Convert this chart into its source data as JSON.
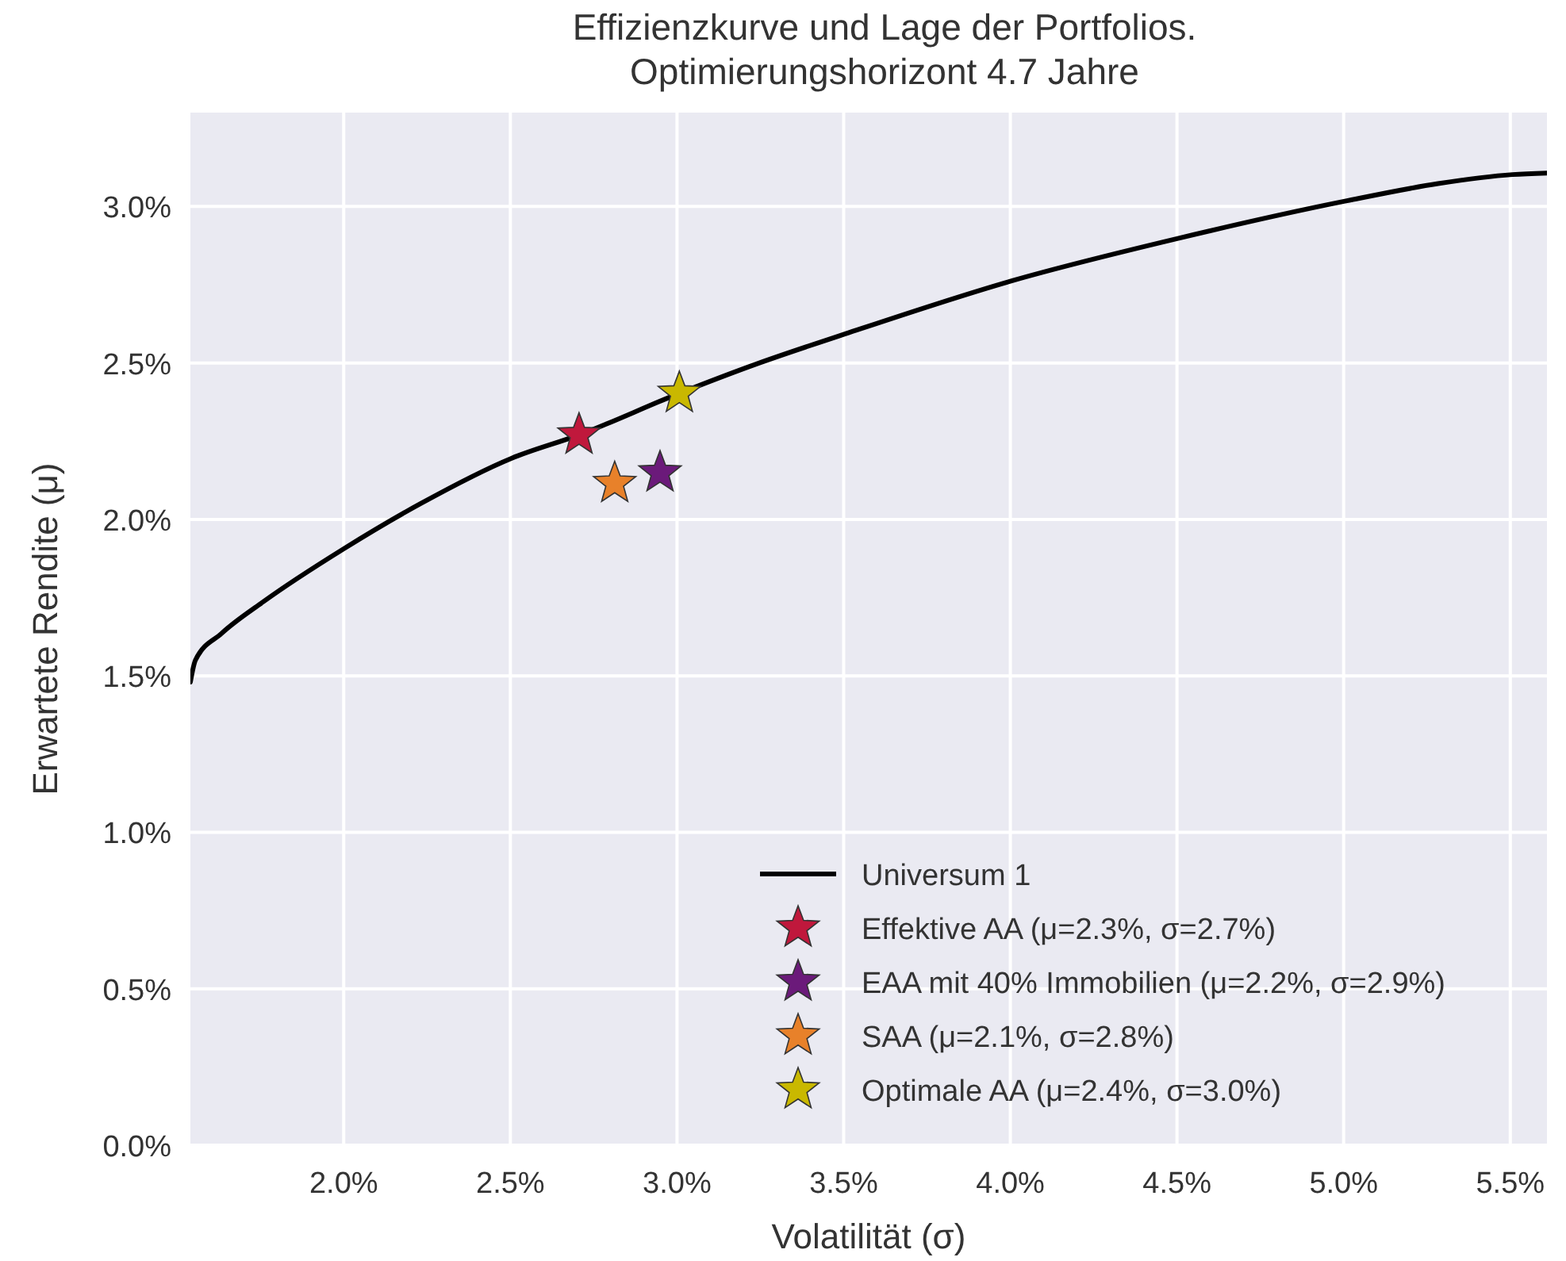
{
  "chart_data": {
    "type": "line",
    "title": "Effizienzkurve und Lage der Portfolios.\nOptimierungshorizont 4.7 Jahre",
    "xlabel": "Volatilität (σ)",
    "ylabel": "Erwartete Rendite (μ)",
    "xlim": [
      1.54,
      5.61
    ],
    "ylim": [
      0,
      3.3
    ],
    "xticks": [
      {
        "value": 2.0,
        "label": "2.0%"
      },
      {
        "value": 2.5,
        "label": "2.5%"
      },
      {
        "value": 3.0,
        "label": "3.0%"
      },
      {
        "value": 3.5,
        "label": "3.5%"
      },
      {
        "value": 4.0,
        "label": "4.0%"
      },
      {
        "value": 4.5,
        "label": "4.5%"
      },
      {
        "value": 5.0,
        "label": "5.0%"
      },
      {
        "value": 5.5,
        "label": "5.5%"
      }
    ],
    "yticks": [
      {
        "value": 0.0,
        "label": "0.0%"
      },
      {
        "value": 0.5,
        "label": "0.5%"
      },
      {
        "value": 1.0,
        "label": "1.0%"
      },
      {
        "value": 1.5,
        "label": "1.5%"
      },
      {
        "value": 2.0,
        "label": "2.0%"
      },
      {
        "value": 2.5,
        "label": "2.5%"
      },
      {
        "value": 3.0,
        "label": "3.0%"
      }
    ],
    "grid": true,
    "legend": "bottom right",
    "series": [
      {
        "name": "Universum 1",
        "color": "#000000",
        "marker": "none",
        "line_style": "solid",
        "x": [
          1.54,
          1.555,
          1.633,
          1.759,
          2.0,
          2.23,
          2.503,
          2.706,
          3.0,
          3.247,
          3.505,
          4.006,
          4.503,
          5.004,
          5.283,
          5.506,
          5.61
        ],
        "values": [
          1.48,
          1.55,
          1.635,
          1.737,
          1.906,
          2.05,
          2.195,
          2.27,
          2.4,
          2.5,
          2.593,
          2.763,
          2.898,
          3.017,
          3.073,
          3.102,
          3.107
        ]
      },
      {
        "name": "Effektive AA (μ=2.3%, σ=2.7%)",
        "type": "scatter",
        "marker": "star",
        "color": "#c0183c",
        "x": [
          2.706
        ],
        "values": [
          2.27
        ]
      },
      {
        "name": "EAA mit 40% Immobilien (μ=2.2%, σ=2.9%)",
        "type": "scatter",
        "marker": "star",
        "color": "#6b1a7a",
        "x": [
          2.949
        ],
        "values": [
          2.149
        ]
      },
      {
        "name": "SAA (μ=2.1%, σ=2.8%)",
        "type": "scatter",
        "marker": "star",
        "color": "#e8812a",
        "x": [
          2.813
        ],
        "values": [
          2.115
        ]
      },
      {
        "name": "Optimale AA (μ=2.4%, σ=3.0%)",
        "type": "scatter",
        "marker": "star",
        "color": "#c9b800",
        "x": [
          3.007
        ],
        "values": [
          2.403
        ]
      }
    ]
  }
}
